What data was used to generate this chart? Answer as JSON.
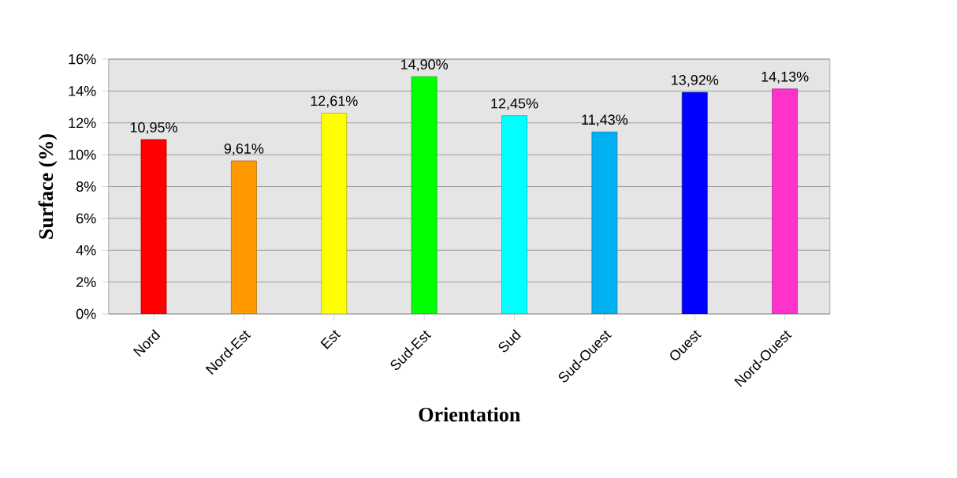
{
  "chart_data": {
    "type": "bar",
    "xlabel": "Orientation",
    "ylabel": "Surface  (%)",
    "categories": [
      "Nord",
      "Nord-Est",
      "Est",
      "Sud-Est",
      "Sud",
      "Sud-Ouest",
      "Ouest",
      "Nord-Ouest"
    ],
    "values": [
      10.95,
      9.61,
      12.61,
      14.9,
      12.45,
      11.43,
      13.92,
      14.13
    ],
    "value_labels": [
      "10,95%",
      "9,61%",
      "12,61%",
      "14,90%",
      "12,45%",
      "11,43%",
      "13,92%",
      "14,13%"
    ],
    "colors": [
      "#ff0000",
      "#ff9900",
      "#ffff00",
      "#00ff00",
      "#00ffff",
      "#00b0f0",
      "#0000ff",
      "#ff33cc"
    ],
    "ylim": [
      0,
      16
    ],
    "yticks": [
      {
        "value": 0,
        "label": "0%"
      },
      {
        "value": 2,
        "label": "2%"
      },
      {
        "value": 4,
        "label": "4%"
      },
      {
        "value": 6,
        "label": "6%"
      },
      {
        "value": 8,
        "label": "8%"
      },
      {
        "value": 10,
        "label": "10%"
      },
      {
        "value": 12,
        "label": "12%"
      },
      {
        "value": 14,
        "label": "14%"
      },
      {
        "value": 16,
        "label": "16%"
      }
    ],
    "grid": "y"
  }
}
